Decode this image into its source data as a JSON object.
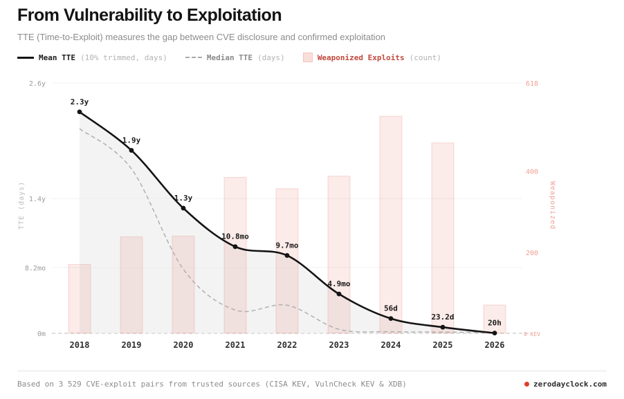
{
  "page": {
    "title": "From Vulnerability to Exploitation",
    "subtitle": "TTE (Time-to-Exploit) measures the gap between CVE disclosure and confirmed exploitation"
  },
  "legend": {
    "items": [
      {
        "label": "Mean TTE",
        "note": "(10% trimmed, days)"
      },
      {
        "label": "Median TTE",
        "note": "(days)"
      },
      {
        "label": "Weaponized Exploits",
        "note": "(count)"
      }
    ]
  },
  "footer": {
    "source": "Based on 3 529 CVE-exploit pairs from trusted sources (CISA KEV, VulnCheck KEV & XDB)",
    "brand": "zerodayclock.com"
  },
  "colors": {
    "mean_line": "#141414",
    "median_line": "#b0b0b0",
    "area_fill": "#e9e9e9",
    "bar_fill": "rgba(223,92,73,0.12)",
    "bar_stroke": "rgba(223,92,73,0.20)",
    "right_axis_text": "#f0a095",
    "annotation": "#1b1b1b",
    "tick_text": "#9a9a9a",
    "x_label": "#2e2e2e",
    "grid": "#f1f1f1",
    "zero_line": "#c8c8c8",
    "accent_red": "#c0483c",
    "brand_dot": "#e03c2d"
  },
  "chart_data": {
    "type": "line+bar",
    "title": "From Vulnerability to Exploitation",
    "categories": [
      "2018",
      "2019",
      "2020",
      "2021",
      "2022",
      "2023",
      "2024",
      "2025",
      "2026"
    ],
    "series": [
      {
        "name": "Mean TTE",
        "type": "line",
        "unit": "months",
        "values": [
          27.6,
          22.8,
          15.6,
          10.8,
          9.7,
          4.9,
          1.84,
          0.76,
          0.03
        ],
        "labels": [
          "2.3y",
          "1.9y",
          "1.3y",
          "10.8mo",
          "9.7mo",
          "4.9mo",
          "56d",
          "23.2d",
          "20h"
        ]
      },
      {
        "name": "Median TTE",
        "type": "dashed-line",
        "unit": "months",
        "values": [
          25.5,
          20.5,
          8.0,
          2.9,
          3.5,
          0.5,
          0.2,
          0.15,
          0.08
        ]
      },
      {
        "name": "Weaponized Exploits",
        "type": "bar",
        "unit": "count",
        "values": [
          170,
          238,
          240,
          385,
          357,
          388,
          536,
          470,
          70
        ]
      }
    ],
    "left_axis": {
      "title": "TTE (days)",
      "max_months": 31.2,
      "ticks": [
        {
          "label": "2.6y",
          "months": 31.2
        },
        {
          "label": "1.4y",
          "months": 16.8
        },
        {
          "label": "8.2mo",
          "months": 8.2
        },
        {
          "label": "0m",
          "months": 0
        }
      ]
    },
    "right_axis": {
      "title": "Weaponized",
      "max": 618,
      "ticks": [
        {
          "label": "618",
          "value": 618
        },
        {
          "label": "400",
          "value": 400
        },
        {
          "label": "200",
          "value": 200
        }
      ],
      "zero_label": "0 KEV"
    },
    "grid": true,
    "legend_position": "top"
  }
}
